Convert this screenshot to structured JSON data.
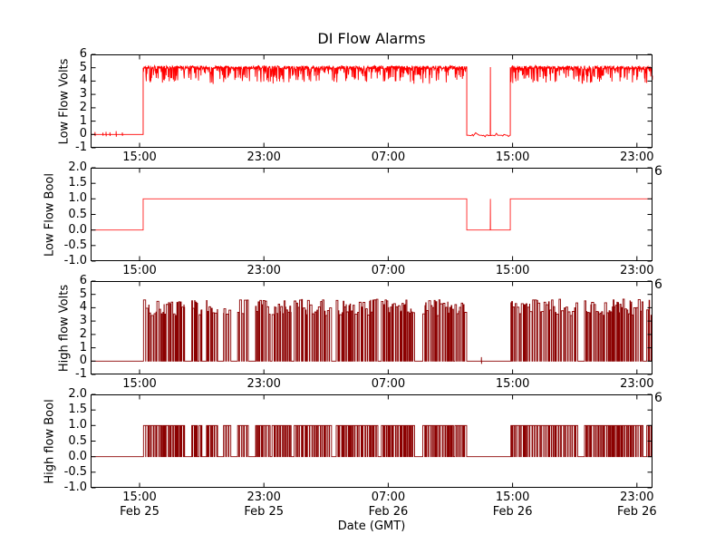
{
  "chart_data": {
    "type": "line",
    "title": "DI Flow Alarms",
    "xlabel": "Date (GMT)",
    "x_zero_reference": "15:00 Feb 25 GMT",
    "xlim_hours": [
      -3.15,
      33.0
    ],
    "grid": false,
    "legend": "none",
    "background": "#ffffff",
    "axis_color": "#000000",
    "xticks": [
      {
        "hours": 0,
        "time": "15:00",
        "date": "Feb 25"
      },
      {
        "hours": 8,
        "time": "23:00",
        "date": "Feb 25"
      },
      {
        "hours": 16,
        "time": "07:00",
        "date": "Feb 26"
      },
      {
        "hours": 24,
        "time": "15:00",
        "date": "Feb 26"
      },
      {
        "hours": 32,
        "time": "23:00",
        "date": "Feb 26"
      }
    ],
    "subplots": [
      {
        "ylabel": "Low Flow Volts",
        "ylim": [
          -1,
          6
        ],
        "ytick_values": [
          6,
          5,
          4,
          3,
          2,
          1,
          0,
          -1
        ],
        "ytick_labels": [
          "6",
          "5",
          "4",
          "3",
          "2",
          "1",
          "0",
          "-1"
        ],
        "color": "#ff0000",
        "corner_label": null,
        "segments": [
          {
            "kind": "flat",
            "t0": -3.15,
            "t1": 0.23,
            "level": 0,
            "blips": [
              {
                "t": -2.86,
                "amp": 0.18
              },
              {
                "t": -2.35,
                "amp": 0.14
              },
              {
                "t": -2.15,
                "amp": 0.2
              },
              {
                "t": -1.9,
                "amp": 0.16
              },
              {
                "t": -1.5,
                "amp": 0.25
              },
              {
                "t": -1.1,
                "amp": 0.15
              }
            ]
          },
          {
            "kind": "noisy_band",
            "t0": 0.23,
            "t1": 21.05,
            "base": 5.0,
            "seed": 11
          },
          {
            "kind": "flat_noise",
            "t0": 21.05,
            "t1": 23.85,
            "level": -0.06,
            "seed": 12,
            "spikes": [
              {
                "t": 22.57,
                "level": 5.05
              }
            ]
          },
          {
            "kind": "noisy_band",
            "t0": 23.85,
            "t1": 33.0,
            "base": 5.0,
            "seed": 13
          }
        ]
      },
      {
        "ylabel": "Low Flow Bool",
        "ylim": [
          -1,
          2
        ],
        "ytick_values": [
          2,
          1.5,
          1,
          0.5,
          0,
          -0.5,
          -1
        ],
        "ytick_labels": [
          "2.0",
          "1.5",
          "1.0",
          "0.5",
          "0.0",
          "-0.5",
          "-1.0"
        ],
        "color": "#ff2222",
        "corner_label": "6",
        "segments": [
          {
            "kind": "flat",
            "t0": -3.15,
            "t1": 0.23,
            "level": 0
          },
          {
            "kind": "flat",
            "t0": 0.23,
            "t1": 21.05,
            "level": 1
          },
          {
            "kind": "flat",
            "t0": 21.05,
            "t1": 23.85,
            "level": 0,
            "spikes": [
              {
                "t": 22.57,
                "level": 1
              }
            ]
          },
          {
            "kind": "flat",
            "t0": 23.85,
            "t1": 33.0,
            "level": 1
          }
        ]
      },
      {
        "ylabel": "High flow Volts",
        "ylim": [
          -1,
          6
        ],
        "ytick_values": [
          6,
          5,
          4,
          3,
          2,
          1,
          0,
          -1
        ],
        "ytick_labels": [
          "6",
          "5",
          "4",
          "3",
          "2",
          "1",
          "0",
          "-1"
        ],
        "color": "#8b0000",
        "corner_label": "6",
        "segments": [
          {
            "kind": "flat",
            "t0": -3.15,
            "t1": 0.23,
            "level": 0
          },
          {
            "kind": "telegraph",
            "t0": 0.23,
            "t1": 21.05,
            "low": 0,
            "high_min": 3.4,
            "high_max": 4.65,
            "seed": 21
          },
          {
            "kind": "flat",
            "t0": 21.05,
            "t1": 23.85,
            "level": 0,
            "blips": [
              {
                "t": 22.0,
                "amp": 0.3
              }
            ]
          },
          {
            "kind": "telegraph",
            "t0": 23.85,
            "t1": 33.0,
            "low": 0,
            "high_min": 3.4,
            "high_max": 4.65,
            "seed": 22
          }
        ]
      },
      {
        "ylabel": "High flow Bool",
        "ylim": [
          -1,
          2
        ],
        "ytick_values": [
          2,
          1.5,
          1,
          0.5,
          0,
          -0.5,
          -1
        ],
        "ytick_labels": [
          "2.0",
          "1.5",
          "1.0",
          "0.5",
          "0.0",
          "-0.5",
          "-1.0"
        ],
        "color": "#8b0000",
        "corner_label": "6",
        "segments": [
          {
            "kind": "flat",
            "t0": -3.15,
            "t1": 0.23,
            "level": 0
          },
          {
            "kind": "telegraph",
            "t0": 0.23,
            "t1": 21.05,
            "low": 0,
            "high_min": 1,
            "high_max": 1,
            "seed": 21
          },
          {
            "kind": "flat",
            "t0": 21.05,
            "t1": 23.85,
            "level": 0
          },
          {
            "kind": "telegraph",
            "t0": 23.85,
            "t1": 33.0,
            "low": 0,
            "high_min": 1,
            "high_max": 1,
            "seed": 22
          }
        ]
      }
    ]
  }
}
